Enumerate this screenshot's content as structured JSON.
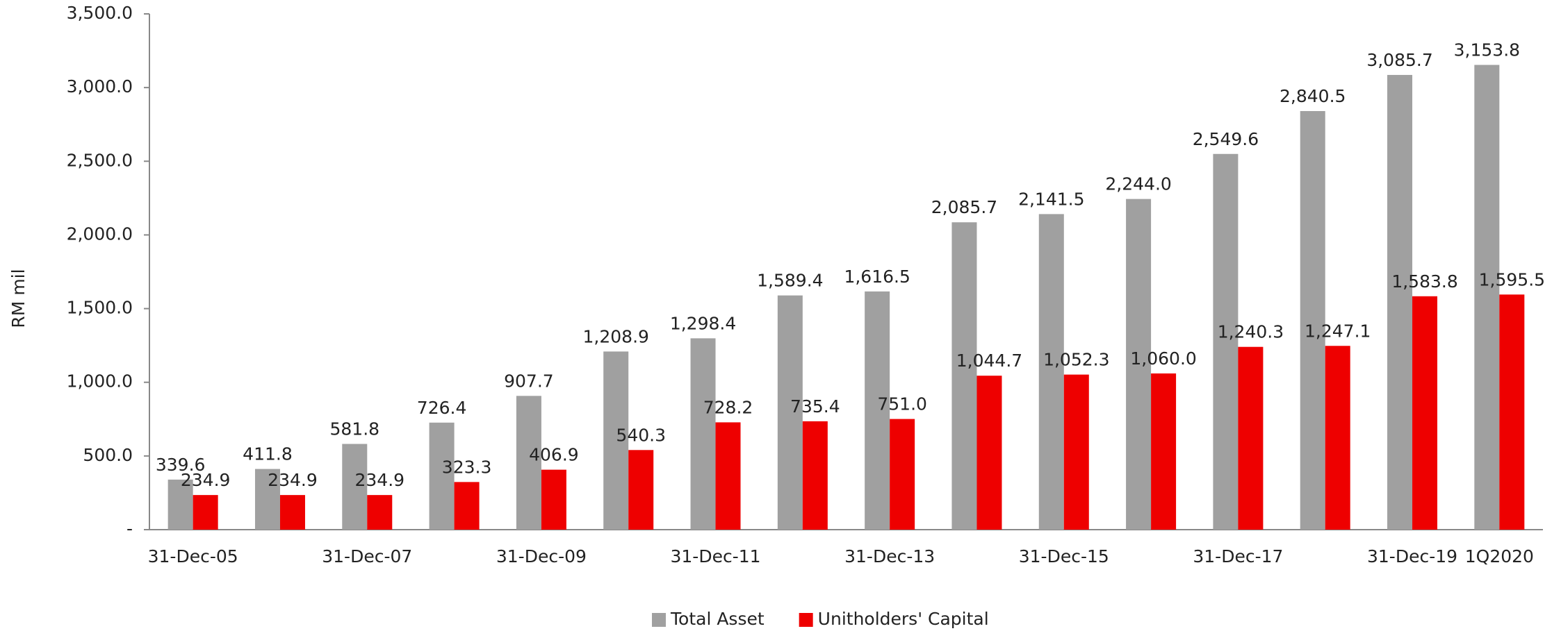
{
  "chart_data": {
    "type": "bar",
    "y_label": "RM mil",
    "categories": [
      "31-Dec-05",
      null,
      "31-Dec-07",
      null,
      "31-Dec-09",
      null,
      "31-Dec-11",
      null,
      "31-Dec-13",
      null,
      "31-Dec-15",
      null,
      "31-Dec-17",
      null,
      "31-Dec-19",
      "1Q2020"
    ],
    "series": [
      {
        "name": "Total Asset",
        "color": "#a0a0a0",
        "values": [
          339.6,
          411.8,
          581.8,
          726.4,
          907.7,
          1208.9,
          1298.4,
          1589.4,
          1616.5,
          2085.7,
          2141.5,
          2244.0,
          2549.6,
          2840.5,
          3085.7,
          3153.8
        ],
        "value_labels": [
          "339.6",
          "411.8",
          "581.8",
          "726.4",
          "907.7",
          "1,208.9",
          "1,298.4",
          "1,589.4",
          "1,616.5",
          "2,085.7",
          "2,141.5",
          "2,244.0",
          "2,549.6",
          "2,840.5",
          "3,085.7",
          "3,153.8"
        ]
      },
      {
        "name": "Unitholders' Capital",
        "color": "#ee0000",
        "values": [
          234.9,
          234.9,
          234.9,
          323.3,
          406.9,
          540.3,
          728.2,
          735.4,
          751.0,
          1044.7,
          1052.3,
          1060.0,
          1240.3,
          1247.1,
          1583.8,
          1595.5
        ],
        "value_labels": [
          "234.9",
          "234.9",
          "234.9",
          "323.3",
          "406.9",
          "540.3",
          "728.2",
          "735.4",
          "751.0",
          "1,044.7",
          "1,052.3",
          "1,060.0",
          "1,240.3",
          "1,247.1",
          "1,583.8",
          "1,595.5"
        ]
      }
    ],
    "ylim": [
      0,
      3500
    ],
    "yticks": [
      {
        "value": 0,
        "label": "-"
      },
      {
        "value": 500,
        "label": "500.0"
      },
      {
        "value": 1000,
        "label": "1,000.0"
      },
      {
        "value": 1500,
        "label": "1,500.0"
      },
      {
        "value": 2000,
        "label": "2,000.0"
      },
      {
        "value": 2500,
        "label": "2,500.0"
      },
      {
        "value": 3000,
        "label": "3,000.0"
      },
      {
        "value": 3500,
        "label": "3,500.0"
      }
    ],
    "legend": "bottom"
  }
}
